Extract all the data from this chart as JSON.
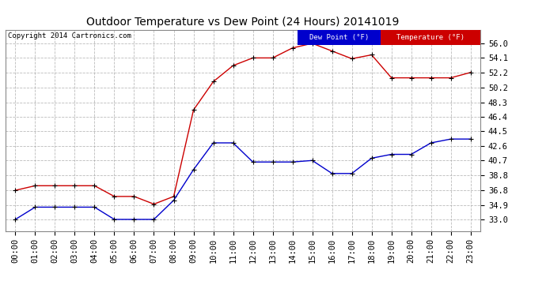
{
  "title": "Outdoor Temperature vs Dew Point (24 Hours) 20141019",
  "copyright": "Copyright 2014 Cartronics.com",
  "x_labels": [
    "00:00",
    "01:00",
    "02:00",
    "03:00",
    "04:00",
    "05:00",
    "06:00",
    "07:00",
    "08:00",
    "09:00",
    "10:00",
    "11:00",
    "12:00",
    "13:00",
    "14:00",
    "15:00",
    "16:00",
    "17:00",
    "18:00",
    "19:00",
    "20:00",
    "21:00",
    "22:00",
    "23:00"
  ],
  "y_ticks": [
    33.0,
    34.9,
    36.8,
    38.8,
    40.7,
    42.6,
    44.5,
    46.4,
    48.3,
    50.2,
    52.2,
    54.1,
    56.0
  ],
  "ylim": [
    31.5,
    57.8
  ],
  "temperature": [
    36.8,
    37.4,
    37.4,
    37.4,
    37.4,
    36.0,
    36.0,
    35.0,
    36.0,
    47.3,
    51.0,
    53.1,
    54.1,
    54.1,
    55.4,
    56.0,
    55.0,
    54.0,
    54.5,
    51.5,
    51.5,
    51.5,
    51.5,
    52.2
  ],
  "dewpoint": [
    33.0,
    34.6,
    34.6,
    34.6,
    34.6,
    33.0,
    33.0,
    33.0,
    35.5,
    39.5,
    43.0,
    43.0,
    40.5,
    40.5,
    40.5,
    40.7,
    39.0,
    39.0,
    41.0,
    41.5,
    41.5,
    43.0,
    43.5,
    43.5
  ],
  "temp_color": "#cc0000",
  "dew_color": "#0000cc",
  "background_color": "#ffffff",
  "grid_color": "#aaaaaa",
  "legend_dew_bg": "#0000cc",
  "legend_temp_bg": "#cc0000",
  "title_fontsize": 10,
  "tick_fontsize": 7.5,
  "marker_size": 3
}
